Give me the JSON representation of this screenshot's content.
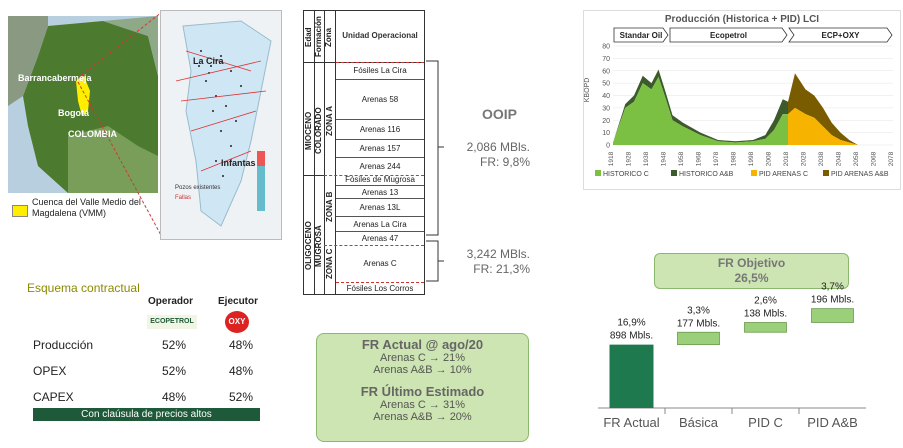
{
  "map": {
    "city_labels": [
      "Barrancabermeja",
      "Bogotá",
      "COLOMBIA"
    ],
    "field_labels": [
      "La Cira",
      "Infantas"
    ],
    "field_legend": [
      "Pozos existentes",
      "Fallas"
    ],
    "basin_legend": "Cuenca del Valle Medio del Magdalena (VMM)"
  },
  "strat": {
    "headers": [
      "Edad",
      "Formación",
      "Zona",
      "Unidad Operacional"
    ],
    "ages": [
      "MIOCENO",
      "OLIGOCENO"
    ],
    "formations": [
      "COLORADO",
      "MUGROSA"
    ],
    "zones": [
      "ZONA A",
      "ZONA B",
      "ZONA C"
    ],
    "units": [
      "Fósiles La Cira",
      "Arenas 58",
      "Arenas 116",
      "Arenas 157",
      "Arenas 244",
      "Fósiles de Mugrosa",
      "Arenas 13",
      "Arenas 13L",
      "Arenas La Cira",
      "Arenas 47",
      "Arenas C",
      "Fósiles Los Corros"
    ]
  },
  "ooip": {
    "title": "OOIP",
    "zone_ab_value": "2,086 MBls.",
    "zone_ab_fr": "FR: 9,8%",
    "zone_c_value": "3,242 MBls.",
    "zone_c_fr": "FR: 21,3%"
  },
  "contract": {
    "title": "Esquema contractual",
    "col_operator": "Operador",
    "col_executor": "Ejecutor",
    "operator_logo": "ECOPETROL",
    "executor_logo": "OXY",
    "rows": [
      {
        "label": "Producción",
        "operator": "52%",
        "executor": "48%"
      },
      {
        "label": "OPEX",
        "operator": "52%",
        "executor": "48%"
      },
      {
        "label": "CAPEX",
        "operator": "48%",
        "executor": "52%"
      }
    ],
    "clause": "Con claúsula de precios altos"
  },
  "fr_actual": {
    "title": "FR Actual @ ago/20",
    "line1": "Arenas C → 21%",
    "line2": "Arenas A&B → 10%",
    "title2": "FR Último Estimado",
    "line3": "Arenas C → 31%",
    "line4": "Arenas A&B → 20%"
  },
  "fr_objetivo": {
    "line1": "FR Objetivo",
    "line2": "26,5%"
  },
  "colors": {
    "dark_green": "#1e7a4e",
    "light_green": "#9ccf7a",
    "box_green": "#cde5b2",
    "historico_c": "#7bc043",
    "historico_ab": "#3d5a2c",
    "pid_c": "#f6b400",
    "pid_ab": "#7a5c00"
  },
  "chart_data": [
    {
      "type": "area",
      "title": "Producción (Historica + PID) LCI",
      "ylabel": "KBOPD",
      "ylim": [
        0,
        80
      ],
      "y_ticks": [
        0,
        10,
        20,
        30,
        40,
        50,
        60,
        70,
        80
      ],
      "x_ticks": [
        1918,
        1928,
        1938,
        1948,
        1958,
        1968,
        1978,
        1988,
        1998,
        2008,
        2018,
        2028,
        2038,
        2048,
        2058,
        2068,
        2078
      ],
      "period_labels": [
        "Standar Oil",
        "Ecopetrol",
        "ECP+OXY"
      ],
      "legend_position": "bottom",
      "series": [
        {
          "name": "HISTORICO C",
          "x": [
            1918,
            1925,
            1930,
            1935,
            1940,
            1944,
            1948,
            1952,
            1958,
            1968,
            1978,
            1988,
            1998,
            2005,
            2010,
            2015,
            2018
          ],
          "values": [
            2,
            30,
            35,
            50,
            45,
            55,
            38,
            20,
            15,
            8,
            3,
            2,
            3,
            5,
            12,
            25,
            25
          ]
        },
        {
          "name": "HISTORICO A&B",
          "x": [
            1918,
            1925,
            1930,
            1935,
            1940,
            1944,
            1948,
            1952,
            1958,
            1968,
            1978,
            1988,
            1998,
            2005,
            2010,
            2015,
            2018
          ],
          "values": [
            0,
            3,
            5,
            6,
            5,
            6,
            5,
            4,
            3,
            2,
            1,
            1,
            1,
            3,
            8,
            12,
            10
          ]
        },
        {
          "name": "PID ARENAS C",
          "x": [
            2018,
            2022,
            2028,
            2033,
            2038,
            2043,
            2048,
            2053,
            2058
          ],
          "values": [
            25,
            30,
            25,
            22,
            15,
            8,
            4,
            2,
            0
          ]
        },
        {
          "name": "PID ARENAS A&B",
          "x": [
            2018,
            2022,
            2028,
            2033,
            2038,
            2043,
            2048,
            2053,
            2058
          ],
          "values": [
            10,
            28,
            20,
            18,
            15,
            10,
            6,
            2,
            0
          ]
        }
      ]
    },
    {
      "type": "bar",
      "categories": [
        "FR Actual",
        "Básica",
        "PID C",
        "PID A&B"
      ],
      "series": [
        {
          "name": "FR",
          "values": [
            16.9,
            3.3,
            2.6,
            3.7
          ]
        }
      ],
      "data_labels": [
        {
          "pct": "16,9%",
          "vol": "898 Mbls."
        },
        {
          "pct": "3,3%",
          "vol": "177 Mbls."
        },
        {
          "pct": "2,6%",
          "vol": "138 Mbls."
        },
        {
          "pct": "3,7%",
          "vol": "196 Mbls."
        }
      ]
    }
  ]
}
